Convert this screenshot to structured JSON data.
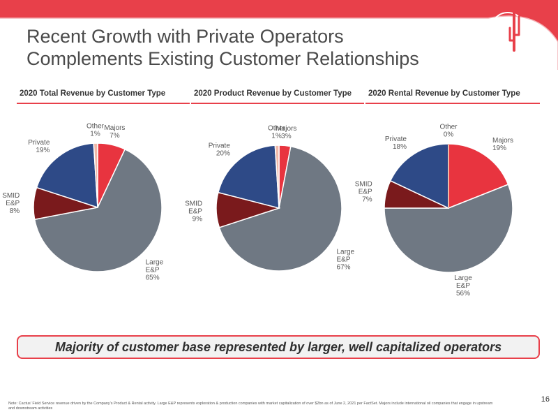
{
  "slide": {
    "title_line1": "Recent Growth with Private Operators",
    "title_line2": "Complements Existing Customer Relationships",
    "callout": "Majority of customer base represented by larger, well capitalized operators",
    "page_number": "16",
    "note": "Note: Cactus' Field Service revenue driven by the Company's Product & Rental activity. Large E&P represents exploration & production companies with market capitalization of over $2bn as of June 2, 2021 per FactSet. Majors include international oil companies that engage in upstream and downstream activities"
  },
  "colors": {
    "brand_red": "#e8404a",
    "majors": "#e8343f",
    "large_ep": "#6f7883",
    "smid_ep": "#7a1a1c",
    "private": "#2e4a87",
    "other": "#f0b8a8"
  },
  "icons": {
    "logo": "cactus-logo-icon"
  },
  "chart_data": [
    {
      "type": "pie",
      "title": "2020 Total Revenue by Customer Type",
      "slices": [
        {
          "name": "Majors",
          "value": 7,
          "label": "7%"
        },
        {
          "name": "Large E&P",
          "value": 65,
          "label": "65%"
        },
        {
          "name": "SMID E&P",
          "value": 8,
          "label": "8%"
        },
        {
          "name": "Private",
          "value": 19,
          "label": "19%"
        },
        {
          "name": "Other",
          "value": 1,
          "label": "1%"
        }
      ]
    },
    {
      "type": "pie",
      "title": "2020 Product Revenue by Customer Type",
      "slices": [
        {
          "name": "Majors",
          "value": 3,
          "label": "3%"
        },
        {
          "name": "Large E&P",
          "value": 67,
          "label": "67%"
        },
        {
          "name": "SMID E&P",
          "value": 9,
          "label": "9%"
        },
        {
          "name": "Private",
          "value": 20,
          "label": "20%"
        },
        {
          "name": "Other",
          "value": 1,
          "label": "1%"
        }
      ]
    },
    {
      "type": "pie",
      "title": "2020 Rental Revenue by Customer Type",
      "slices": [
        {
          "name": "Majors",
          "value": 19,
          "label": "19%"
        },
        {
          "name": "Large E&P",
          "value": 56,
          "label": "56%"
        },
        {
          "name": "SMID E&P",
          "value": 7,
          "label": "7%"
        },
        {
          "name": "Private",
          "value": 18,
          "label": "18%"
        },
        {
          "name": "Other",
          "value": 0,
          "label": "0%"
        }
      ]
    }
  ]
}
